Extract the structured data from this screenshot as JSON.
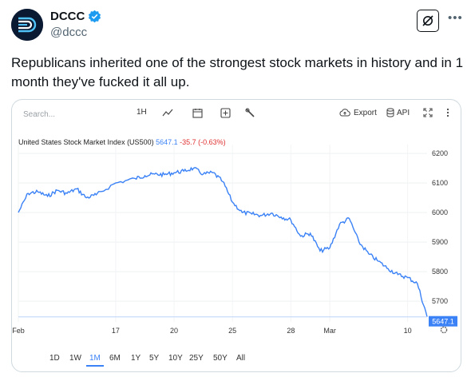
{
  "account": {
    "display_name": "DCCC",
    "handle": "@dccc"
  },
  "tweet": {
    "text": "Republicans inherited one of the strongest stock markets in history and in 1 month they've fucked it all up."
  },
  "widget": {
    "search_placeholder": "Search...",
    "interval": "1H",
    "export_label": "Export",
    "api_label": "API",
    "title": "United States Stock Market Index (US500)",
    "price": "5647.1",
    "change": "-35.7 (-0.63%)",
    "last_price_label": "5647.1",
    "periods": [
      "1D",
      "1W",
      "1M",
      "6M",
      "1Y",
      "5Y",
      "10Y",
      "25Y",
      "50Y",
      "All"
    ],
    "active_period": "1M"
  },
  "colors": {
    "line": "#3b82f6",
    "negative": "#e03131",
    "verified": "#1d9bf0"
  },
  "chart_data": {
    "type": "line",
    "title": "United States Stock Market Index (US500)",
    "x_ticks": [
      "Feb",
      "17",
      "20",
      "25",
      "28",
      "Mar",
      "10"
    ],
    "y_ticks": [
      6200,
      6100,
      6000,
      5900,
      5800,
      5700
    ],
    "ylim": [
      5630,
      6230
    ],
    "grid": true,
    "series": [
      {
        "name": "US500",
        "x": [
          "2025-02-10",
          "2025-02-10T12",
          "2025-02-11",
          "2025-02-11T12",
          "2025-02-12",
          "2025-02-12T12",
          "2025-02-13",
          "2025-02-13T12",
          "2025-02-14",
          "2025-02-17",
          "2025-02-18",
          "2025-02-18T12",
          "2025-02-19",
          "2025-02-19T12",
          "2025-02-20",
          "2025-02-20T12",
          "2025-02-21",
          "2025-02-21T12",
          "2025-02-24",
          "2025-02-24T12",
          "2025-02-25",
          "2025-02-25T12",
          "2025-02-26",
          "2025-02-26T12",
          "2025-02-27",
          "2025-02-27T12",
          "2025-02-28",
          "2025-02-28T12",
          "2025-03-03",
          "2025-03-03T12",
          "2025-03-04",
          "2025-03-04T12",
          "2025-03-05",
          "2025-03-05T12",
          "2025-03-06",
          "2025-03-06T12",
          "2025-03-07",
          "2025-03-07T12",
          "2025-03-10",
          "2025-03-10T12",
          "2025-03-11"
        ],
        "values": [
          6000,
          6065,
          6070,
          6055,
          6075,
          6065,
          6080,
          6050,
          6060,
          6100,
          6115,
          6125,
          6130,
          6128,
          6135,
          6140,
          6150,
          6130,
          6135,
          6105,
          6035,
          6000,
          5995,
          5990,
          5998,
          5985,
          5975,
          5920,
          5930,
          5870,
          5880,
          5960,
          5980,
          5900,
          5860,
          5835,
          5810,
          5790,
          5780,
          5760,
          5647
        ]
      }
    ]
  }
}
